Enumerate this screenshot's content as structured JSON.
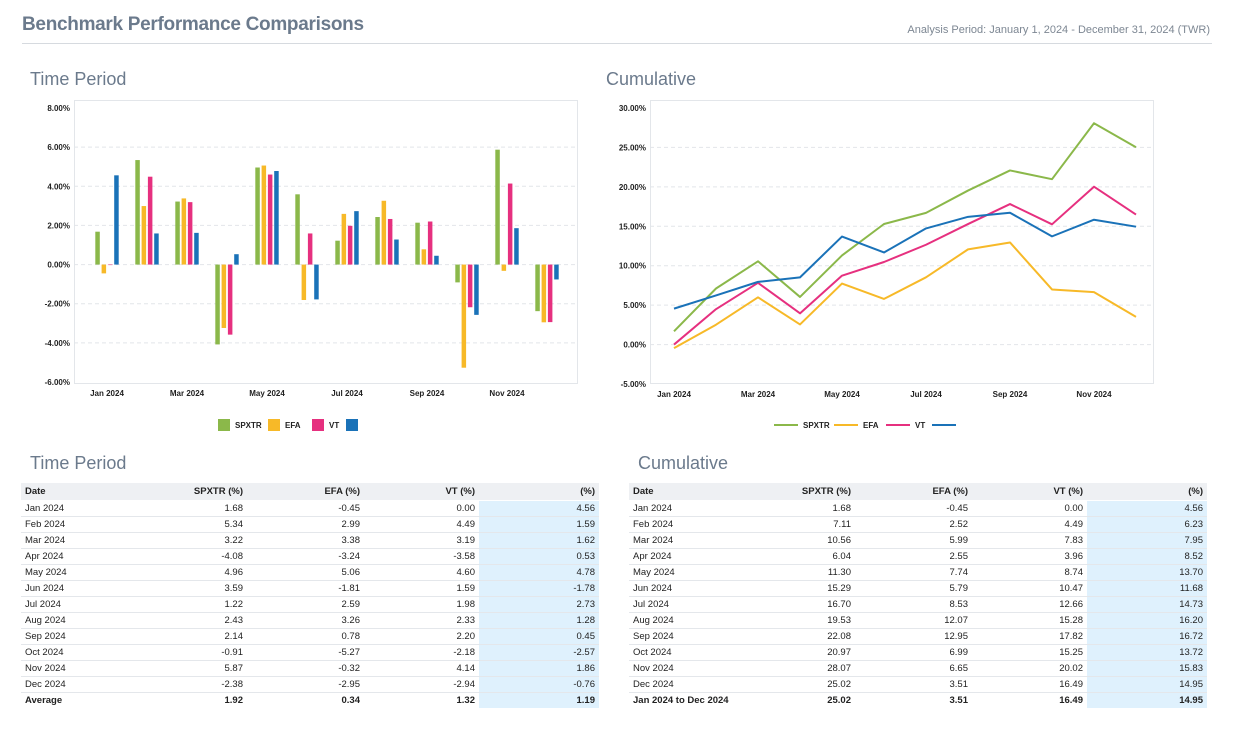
{
  "header": {
    "title": "Benchmark Performance Comparisons",
    "subtitle": "Analysis Period: January 1, 2024 - December 31, 2024 (TWR)"
  },
  "sections": {
    "bar_title": "Time Period",
    "line_title": "Cumulative",
    "table1_title": "Time Period",
    "table2_title": "Cumulative"
  },
  "colors": {
    "SPXTR": "#8bb84a",
    "EFA": "#f7b928",
    "VT": "#e6307f",
    "S4": "#1a72b8"
  },
  "chart_data": [
    {
      "type": "bar",
      "title": "Time Period",
      "categories": [
        "Jan 2024",
        "Feb 2024",
        "Mar 2024",
        "Apr 2024",
        "May 2024",
        "Jun 2024",
        "Jul 2024",
        "Aug 2024",
        "Sep 2024",
        "Oct 2024",
        "Nov 2024",
        "Dec 2024"
      ],
      "x_tick_labels": [
        "Jan 2024",
        "Mar 2024",
        "May 2024",
        "Jul 2024",
        "Sep 2024",
        "Nov 2024"
      ],
      "y_tick_labels": [
        "8.00%",
        "6.00%",
        "4.00%",
        "2.00%",
        "0.00%",
        "-2.00%",
        "-4.00%",
        "-6.00%"
      ],
      "ylim": [
        -6,
        8
      ],
      "grid": true,
      "legend_position": "bottom",
      "series": [
        {
          "name": "SPXTR",
          "values": [
            1.68,
            5.34,
            3.22,
            -4.08,
            4.96,
            3.59,
            1.22,
            2.43,
            2.14,
            -0.91,
            5.87,
            -2.38
          ]
        },
        {
          "name": "EFA",
          "values": [
            -0.45,
            2.99,
            3.38,
            -3.24,
            5.06,
            -1.81,
            2.59,
            3.26,
            0.78,
            -5.27,
            -0.32,
            -2.95
          ]
        },
        {
          "name": "VT",
          "values": [
            0.0,
            4.49,
            3.19,
            -3.58,
            4.6,
            1.59,
            1.98,
            2.33,
            2.2,
            -2.18,
            4.14,
            -2.94
          ]
        },
        {
          "name": "",
          "values": [
            4.56,
            1.59,
            1.62,
            0.53,
            4.78,
            -1.78,
            2.73,
            1.28,
            0.45,
            -2.57,
            1.86,
            -0.76
          ]
        }
      ]
    },
    {
      "type": "line",
      "title": "Cumulative",
      "categories": [
        "Jan 2024",
        "Feb 2024",
        "Mar 2024",
        "Apr 2024",
        "May 2024",
        "Jun 2024",
        "Jul 2024",
        "Aug 2024",
        "Sep 2024",
        "Oct 2024",
        "Nov 2024",
        "Dec 2024"
      ],
      "x_tick_labels": [
        "Jan 2024",
        "Mar 2024",
        "May 2024",
        "Jul 2024",
        "Sep 2024",
        "Nov 2024"
      ],
      "y_tick_labels": [
        "30.00%",
        "25.00%",
        "20.00%",
        "15.00%",
        "10.00%",
        "5.00%",
        "0.00%",
        "-5.00%"
      ],
      "ylim": [
        -5,
        30
      ],
      "grid": true,
      "legend_position": "bottom",
      "series": [
        {
          "name": "SPXTR",
          "values": [
            1.68,
            7.11,
            10.56,
            6.04,
            11.3,
            15.29,
            16.7,
            19.53,
            22.08,
            20.97,
            28.07,
            25.02
          ]
        },
        {
          "name": "EFA",
          "values": [
            -0.45,
            2.52,
            5.99,
            2.55,
            7.74,
            5.79,
            8.53,
            12.07,
            12.95,
            6.99,
            6.65,
            3.51
          ]
        },
        {
          "name": "VT",
          "values": [
            0.0,
            4.49,
            7.83,
            3.96,
            8.74,
            10.47,
            12.66,
            15.28,
            17.82,
            15.25,
            20.02,
            16.49
          ]
        },
        {
          "name": "",
          "values": [
            4.56,
            6.23,
            7.95,
            8.52,
            13.7,
            11.68,
            14.73,
            16.2,
            16.72,
            13.72,
            15.83,
            14.95
          ]
        }
      ]
    }
  ],
  "table1": {
    "headers": [
      "Date",
      "SPXTR (%)",
      "EFA (%)",
      "VT (%)",
      "(%)"
    ],
    "rows": [
      [
        "Jan 2024",
        "1.68",
        "-0.45",
        "0.00",
        "4.56"
      ],
      [
        "Feb 2024",
        "5.34",
        "2.99",
        "4.49",
        "1.59"
      ],
      [
        "Mar 2024",
        "3.22",
        "3.38",
        "3.19",
        "1.62"
      ],
      [
        "Apr 2024",
        "-4.08",
        "-3.24",
        "-3.58",
        "0.53"
      ],
      [
        "May 2024",
        "4.96",
        "5.06",
        "4.60",
        "4.78"
      ],
      [
        "Jun 2024",
        "3.59",
        "-1.81",
        "1.59",
        "-1.78"
      ],
      [
        "Jul 2024",
        "1.22",
        "2.59",
        "1.98",
        "2.73"
      ],
      [
        "Aug 2024",
        "2.43",
        "3.26",
        "2.33",
        "1.28"
      ],
      [
        "Sep 2024",
        "2.14",
        "0.78",
        "2.20",
        "0.45"
      ],
      [
        "Oct 2024",
        "-0.91",
        "-5.27",
        "-2.18",
        "-2.57"
      ],
      [
        "Nov 2024",
        "5.87",
        "-0.32",
        "4.14",
        "1.86"
      ],
      [
        "Dec 2024",
        "-2.38",
        "-2.95",
        "-2.94",
        "-0.76"
      ]
    ],
    "total": [
      "Average",
      "1.92",
      "0.34",
      "1.32",
      "1.19"
    ]
  },
  "table2": {
    "headers": [
      "Date",
      "SPXTR (%)",
      "EFA (%)",
      "VT (%)",
      "(%)"
    ],
    "rows": [
      [
        "Jan 2024",
        "1.68",
        "-0.45",
        "0.00",
        "4.56"
      ],
      [
        "Feb 2024",
        "7.11",
        "2.52",
        "4.49",
        "6.23"
      ],
      [
        "Mar 2024",
        "10.56",
        "5.99",
        "7.83",
        "7.95"
      ],
      [
        "Apr 2024",
        "6.04",
        "2.55",
        "3.96",
        "8.52"
      ],
      [
        "May 2024",
        "11.30",
        "7.74",
        "8.74",
        "13.70"
      ],
      [
        "Jun 2024",
        "15.29",
        "5.79",
        "10.47",
        "11.68"
      ],
      [
        "Jul 2024",
        "16.70",
        "8.53",
        "12.66",
        "14.73"
      ],
      [
        "Aug 2024",
        "19.53",
        "12.07",
        "15.28",
        "16.20"
      ],
      [
        "Sep 2024",
        "22.08",
        "12.95",
        "17.82",
        "16.72"
      ],
      [
        "Oct 2024",
        "20.97",
        "6.99",
        "15.25",
        "13.72"
      ],
      [
        "Nov 2024",
        "28.07",
        "6.65",
        "20.02",
        "15.83"
      ],
      [
        "Dec 2024",
        "25.02",
        "3.51",
        "16.49",
        "14.95"
      ]
    ],
    "total": [
      "Jan 2024 to Dec 2024",
      "25.02",
      "3.51",
      "16.49",
      "14.95"
    ]
  }
}
